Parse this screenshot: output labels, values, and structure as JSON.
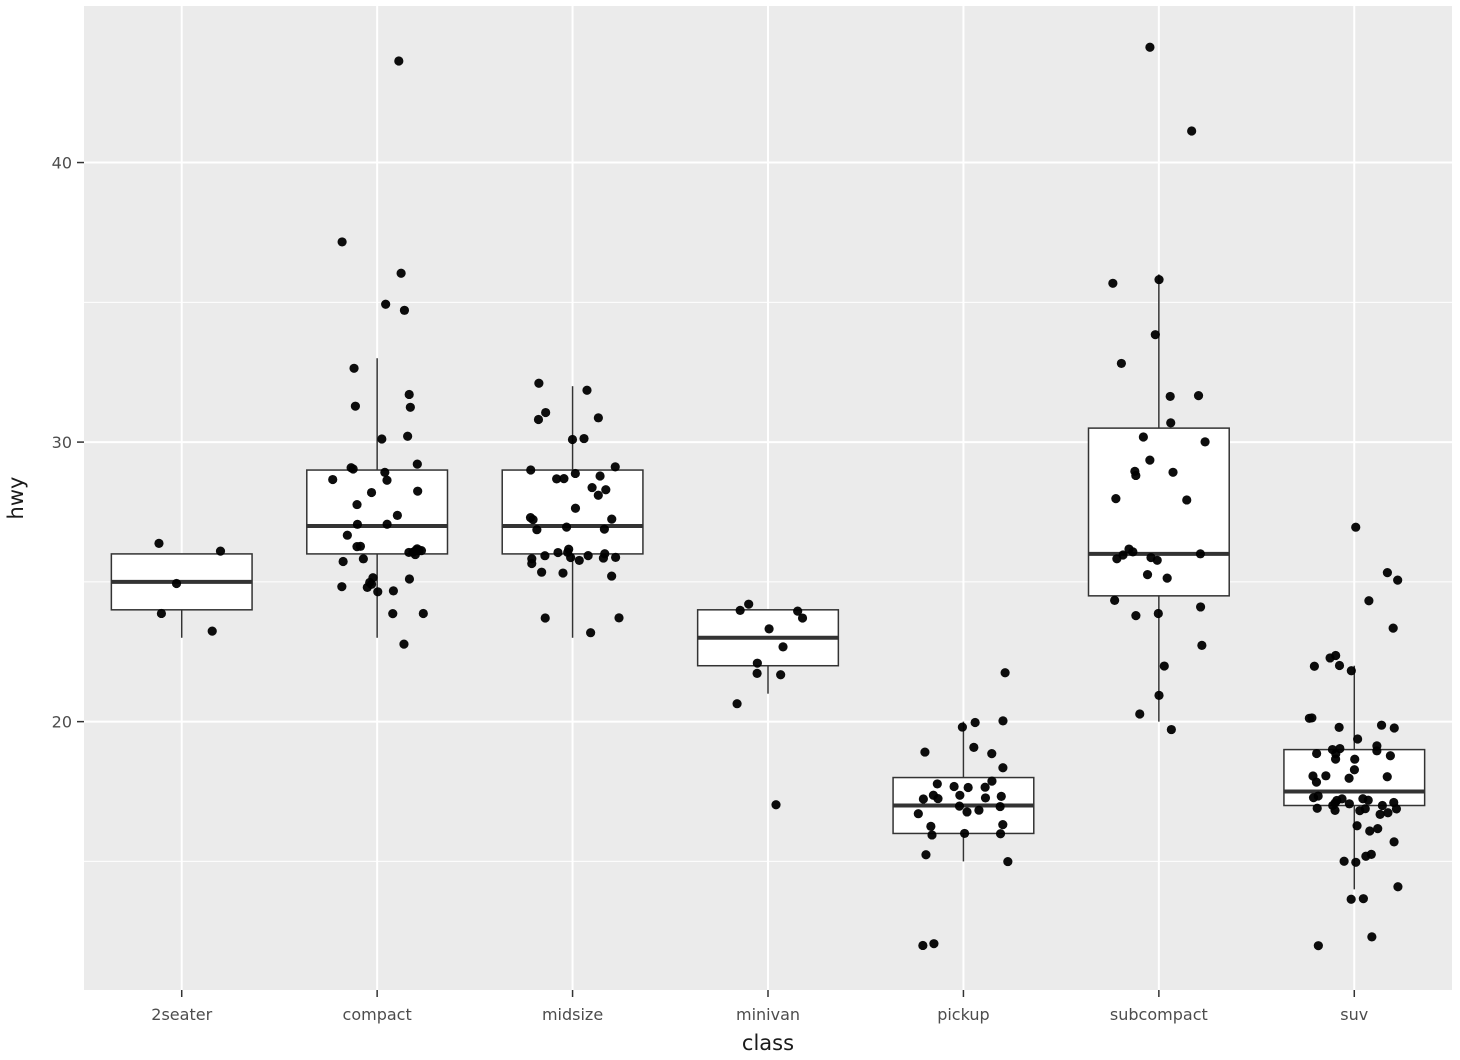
{
  "chart_data": {
    "type": "boxplot",
    "subtype": "boxplot-with-jittered-points",
    "title": "",
    "xlabel": "class",
    "ylabel": "hwy",
    "categories": [
      "2seater",
      "compact",
      "midsize",
      "minivan",
      "pickup",
      "subcompact",
      "suv"
    ],
    "y_ticks": [
      20,
      30,
      40
    ],
    "y_minor_ticks": [
      15,
      25,
      35
    ],
    "ylim": [
      10.4,
      45.6
    ],
    "grid": "on",
    "legend": "none",
    "colors": {
      "panel_bg": "#EBEBEB",
      "gridline": "#FFFFFF",
      "box_fill": "#FFFFFF",
      "box_stroke": "#333333",
      "point": "#000000",
      "tick_label": "#4D4D4D",
      "axis_title": "#1a1a1a"
    },
    "series": [
      {
        "class": "2seater",
        "values": [
          23,
          24,
          25,
          26,
          26
        ],
        "box": {
          "lower_whisker": 23,
          "q1": 24,
          "median": 25,
          "q3": 26,
          "upper_whisker": 26,
          "outliers": []
        }
      },
      {
        "class": "compact",
        "values": [
          23,
          24,
          24,
          25,
          25,
          25,
          25,
          25,
          25,
          25,
          25,
          26,
          26,
          26,
          26,
          26,
          26,
          26,
          26,
          26,
          26,
          26,
          26,
          27,
          27,
          27,
          27,
          28,
          28,
          28,
          29,
          29,
          29,
          29,
          29,
          29,
          30,
          30,
          31,
          31,
          32,
          33,
          35,
          35,
          36,
          37,
          44
        ],
        "box": {
          "lower_whisker": 23,
          "q1": 26,
          "median": 27,
          "q3": 29,
          "upper_whisker": 33,
          "outliers": [
            35,
            35,
            36,
            37,
            44
          ]
        }
      },
      {
        "class": "midsize",
        "values": [
          23,
          24,
          24,
          25,
          25,
          25,
          26,
          26,
          26,
          26,
          26,
          26,
          26,
          26,
          26,
          26,
          26,
          26,
          27,
          27,
          27,
          27,
          27,
          27,
          28,
          28,
          28,
          28,
          29,
          29,
          29,
          29,
          29,
          29,
          30,
          30,
          31,
          31,
          31,
          32,
          32
        ],
        "box": {
          "lower_whisker": 23,
          "q1": 26,
          "median": 27,
          "q3": 29,
          "upper_whisker": 32,
          "outliers": []
        }
      },
      {
        "class": "minivan",
        "values": [
          17,
          21,
          22,
          22,
          22,
          23,
          23,
          24,
          24,
          24,
          24
        ],
        "box": {
          "lower_whisker": 21,
          "q1": 22,
          "median": 23,
          "q3": 24,
          "upper_whisker": 24,
          "outliers": [
            17
          ]
        }
      },
      {
        "class": "pickup",
        "values": [
          12,
          12,
          15,
          15,
          16,
          16,
          16,
          16,
          16,
          17,
          17,
          17,
          17,
          17,
          17,
          17,
          17,
          17,
          17,
          17,
          18,
          18,
          18,
          18,
          18,
          18,
          19,
          19,
          19,
          20,
          20,
          20,
          22
        ],
        "box": {
          "lower_whisker": 15,
          "q1": 16,
          "median": 17,
          "q3": 18,
          "upper_whisker": 20,
          "outliers": [
            12,
            12,
            22
          ]
        }
      },
      {
        "class": "subcompact",
        "values": [
          20,
          20,
          21,
          22,
          23,
          24,
          24,
          24,
          24,
          25,
          25,
          26,
          26,
          26,
          26,
          26,
          26,
          26,
          28,
          28,
          29,
          29,
          29,
          29,
          30,
          30,
          31,
          32,
          32,
          33,
          34,
          36,
          36,
          41,
          44
        ],
        "box": {
          "lower_whisker": 20,
          "q1": 24.5,
          "median": 26,
          "q3": 30.5,
          "upper_whisker": 36,
          "outliers": [
            41,
            44
          ]
        }
      },
      {
        "class": "suv",
        "values": [
          12,
          12,
          14,
          14,
          14,
          15,
          15,
          15,
          15,
          16,
          16,
          16,
          16,
          17,
          17,
          17,
          17,
          17,
          17,
          17,
          17,
          17,
          17,
          17,
          17,
          17,
          17,
          17,
          17,
          17,
          17,
          18,
          18,
          18,
          18,
          18,
          18,
          19,
          19,
          19,
          19,
          19,
          19,
          19,
          19,
          19,
          19,
          20,
          20,
          20,
          20,
          20,
          22,
          22,
          22,
          22,
          22,
          23,
          24,
          25,
          25,
          27
        ],
        "box": {
          "lower_whisker": 14,
          "q1": 17,
          "median": 17.5,
          "q3": 19,
          "upper_whisker": 22,
          "outliers": [
            12,
            12,
            23,
            24,
            25,
            25,
            27
          ]
        }
      }
    ]
  }
}
